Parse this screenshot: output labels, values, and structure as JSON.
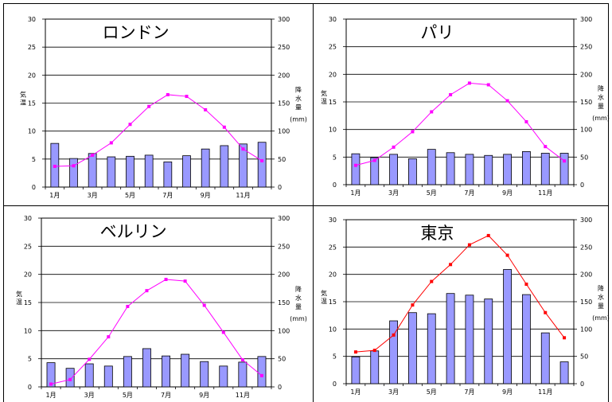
{
  "chart_data": [
    {
      "type": "bar",
      "title": "ロンドン",
      "x_tick_labels": [
        "1月",
        "3月",
        "5月",
        "7月",
        "9月",
        "11月"
      ],
      "left_axis": {
        "label": "気温",
        "ylim": [
          0,
          30
        ],
        "ticks": [
          "0",
          "5",
          "10",
          "15",
          "20",
          "25",
          "30"
        ]
      },
      "right_axis": {
        "label": "降水量",
        "unit": "(mm)",
        "ylim": [
          0,
          300
        ],
        "ticks": [
          "0",
          "50",
          "100",
          "150",
          "200",
          "250",
          "300"
        ]
      },
      "grid": true,
      "months": [
        1,
        2,
        3,
        4,
        5,
        6,
        7,
        8,
        9,
        10,
        11,
        12
      ],
      "series": [
        {
          "kind": "bar",
          "axis": "right",
          "color": "#9999ff",
          "values": [
            78,
            51,
            60,
            54,
            55,
            57,
            45,
            56,
            68,
            74,
            77,
            80
          ]
        },
        {
          "kind": "line",
          "axis": "left",
          "color": "#ff00ff",
          "values": [
            3.7,
            3.8,
            5.7,
            7.9,
            11.2,
            14.4,
            16.5,
            16.2,
            13.8,
            10.7,
            6.8,
            4.7
          ]
        }
      ]
    },
    {
      "type": "bar",
      "title": "パリ",
      "x_tick_labels": [
        "1月",
        "3月",
        "5月",
        "7月",
        "9月",
        "11月"
      ],
      "left_axis": {
        "label": "気温",
        "ylim": [
          0,
          30
        ],
        "ticks": [
          "0",
          "5",
          "10",
          "15",
          "20",
          "25",
          "30"
        ]
      },
      "right_axis": {
        "label": "降水量",
        "unit": "(mm)",
        "ylim": [
          0,
          300
        ],
        "ticks": [
          "0",
          "50",
          "100",
          "150",
          "200",
          "250",
          "300"
        ]
      },
      "grid": true,
      "months": [
        1,
        2,
        3,
        4,
        5,
        6,
        7,
        8,
        9,
        10,
        11,
        12
      ],
      "series": [
        {
          "kind": "bar",
          "axis": "right",
          "color": "#9999ff",
          "values": [
            56,
            49,
            55,
            47,
            64,
            58,
            55,
            53,
            55,
            60,
            57,
            57
          ]
        },
        {
          "kind": "line",
          "axis": "left",
          "color": "#ff00ff",
          "values": [
            3.5,
            4.4,
            6.8,
            9.6,
            13.2,
            16.3,
            18.4,
            18.1,
            15.2,
            11.4,
            6.9,
            4.3
          ]
        }
      ]
    },
    {
      "type": "bar",
      "title": "ベルリン",
      "x_tick_labels": [
        "1月",
        "3月",
        "5月",
        "7月",
        "9月",
        "11月"
      ],
      "left_axis": {
        "label": "気温",
        "ylim": [
          0,
          30
        ],
        "ticks": [
          "0",
          "5",
          "10",
          "15",
          "20",
          "25",
          "30"
        ]
      },
      "right_axis": {
        "label": "降水量",
        "unit": "(mm)",
        "ylim": [
          0,
          300
        ],
        "ticks": [
          "0",
          "50",
          "100",
          "150",
          "200",
          "250",
          "300"
        ]
      },
      "grid": true,
      "months": [
        1,
        2,
        3,
        4,
        5,
        6,
        7,
        8,
        9,
        10,
        11,
        12
      ],
      "series": [
        {
          "kind": "bar",
          "axis": "right",
          "color": "#9999ff",
          "values": [
            43,
            33,
            41,
            37,
            54,
            68,
            55,
            58,
            45,
            37,
            44,
            54
          ]
        },
        {
          "kind": "line",
          "axis": "left",
          "color": "#ff00ff",
          "values": [
            0.5,
            1.3,
            4.9,
            8.9,
            14.3,
            17.1,
            19.1,
            18.8,
            14.5,
            9.7,
            4.8,
            2.0
          ]
        }
      ]
    },
    {
      "type": "bar",
      "title": "東京",
      "x_tick_labels": [
        "1月",
        "3月",
        "5月",
        "7月",
        "9月",
        "11月"
      ],
      "left_axis": {
        "label": "気温",
        "ylim": [
          0,
          30
        ],
        "ticks": [
          "0",
          "5",
          "10",
          "15",
          "20",
          "25",
          "30"
        ]
      },
      "right_axis": {
        "label": "降水量",
        "unit": "(mm)",
        "ylim": [
          0,
          300
        ],
        "ticks": [
          "0",
          "50",
          "100",
          "150",
          "200",
          "250",
          "300"
        ]
      },
      "grid": true,
      "months": [
        1,
        2,
        3,
        4,
        5,
        6,
        7,
        8,
        9,
        10,
        11,
        12
      ],
      "series": [
        {
          "kind": "bar",
          "axis": "right",
          "color": "#9999ff",
          "values": [
            49,
            60,
            115,
            130,
            128,
            165,
            162,
            155,
            209,
            163,
            93,
            40
          ]
        },
        {
          "kind": "line",
          "axis": "left",
          "color": "#ff0000",
          "values": [
            5.8,
            6.1,
            8.9,
            14.4,
            18.7,
            21.8,
            25.4,
            27.1,
            23.5,
            18.2,
            13.0,
            8.4
          ]
        }
      ]
    }
  ]
}
